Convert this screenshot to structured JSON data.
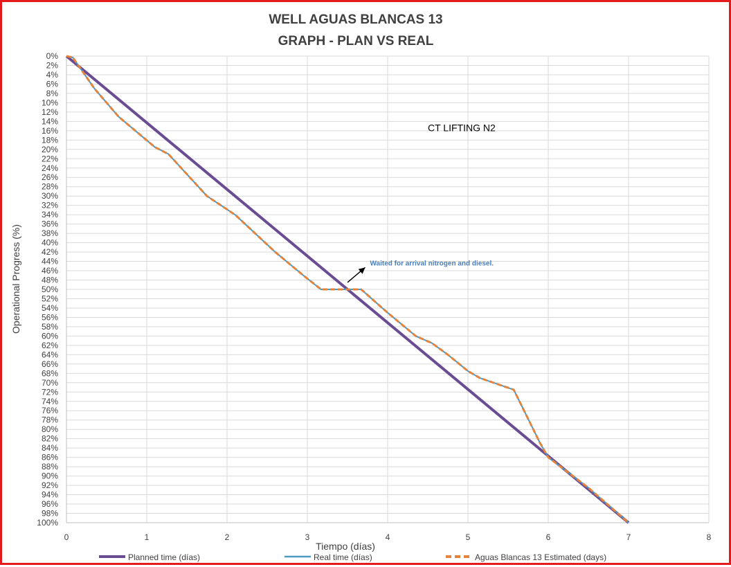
{
  "chart_data": {
    "type": "line",
    "title": "WELL AGUAS BLANCAS 13",
    "subtitle": "GRAPH  - PLAN VS REAL",
    "xlabel": "Tiempo (días)",
    "ylabel": "Operational Progress (%)",
    "xlim": [
      0,
      8
    ],
    "ylim": [
      0,
      100
    ],
    "y_inverted": true,
    "x_ticks": [
      "0",
      "1",
      "2",
      "3",
      "4",
      "5",
      "6",
      "7",
      "8"
    ],
    "y_ticks": [
      "0%",
      "2%",
      "4%",
      "6%",
      "8%",
      "10%",
      "12%",
      "14%",
      "16%",
      "18%",
      "20%",
      "22%",
      "24%",
      "26%",
      "28%",
      "30%",
      "32%",
      "34%",
      "36%",
      "38%",
      "40%",
      "42%",
      "44%",
      "46%",
      "48%",
      "50%",
      "52%",
      "54%",
      "56%",
      "58%",
      "60%",
      "62%",
      "64%",
      "66%",
      "68%",
      "70%",
      "72%",
      "74%",
      "76%",
      "78%",
      "80%",
      "82%",
      "84%",
      "86%",
      "88%",
      "90%",
      "92%",
      "94%",
      "96%",
      "98%",
      "100%"
    ],
    "grid": true,
    "legend_position": "bottom",
    "series": [
      {
        "name": "Planned time (días)",
        "color": "#6a4c93",
        "style": "solid",
        "x": [
          0,
          7
        ],
        "y": [
          0,
          100
        ]
      },
      {
        "name": "Real time (días)",
        "color": "#4a9bc4",
        "style": "solid",
        "x": [
          0,
          0.08,
          0.35,
          0.65,
          1.1,
          1.27,
          1.75,
          2.1,
          2.6,
          2.95,
          3.17,
          3.6,
          3.67,
          4.0,
          4.35,
          4.55,
          4.75,
          5.0,
          5.15,
          5.57,
          5.9,
          6.0,
          6.5,
          7.0
        ],
        "y": [
          0,
          0.3,
          7.0,
          13.0,
          19.5,
          21.0,
          30.0,
          34.0,
          42.0,
          47.0,
          50.0,
          50.0,
          50.0,
          55.0,
          60.0,
          61.5,
          64.0,
          67.5,
          69.0,
          71.5,
          83.0,
          86.0,
          92.5,
          100.0
        ]
      },
      {
        "name": "Aguas Blancas 13 Estimated (days)",
        "color": "#e4843c",
        "style": "dashed",
        "x": [
          0,
          0.08,
          0.35,
          0.65,
          1.1,
          1.27,
          1.75,
          2.1,
          2.6,
          2.95,
          3.17,
          3.6,
          3.67,
          4.0,
          4.35,
          4.55,
          4.75,
          5.0,
          5.15,
          5.57,
          5.9,
          6.0,
          6.5,
          7.0
        ],
        "y": [
          0,
          0.3,
          7.0,
          13.0,
          19.5,
          21.0,
          30.0,
          34.0,
          42.0,
          47.0,
          50.0,
          50.0,
          50.0,
          55.0,
          60.0,
          61.5,
          64.0,
          67.5,
          69.0,
          71.5,
          83.0,
          86.0,
          92.5,
          100.0
        ]
      }
    ],
    "annotations": [
      {
        "text": "CT LIFTING N2",
        "x": 4.5,
        "y": 15.5,
        "color": "#000000"
      },
      {
        "text": "Waited for arrival nitrogen and diesel.",
        "x": 3.78,
        "y": 44.3,
        "color": "#4a7ebb",
        "arrow_from": [
          3.5,
          48.5
        ],
        "arrow_to": [
          3.72,
          45.3
        ]
      }
    ]
  }
}
